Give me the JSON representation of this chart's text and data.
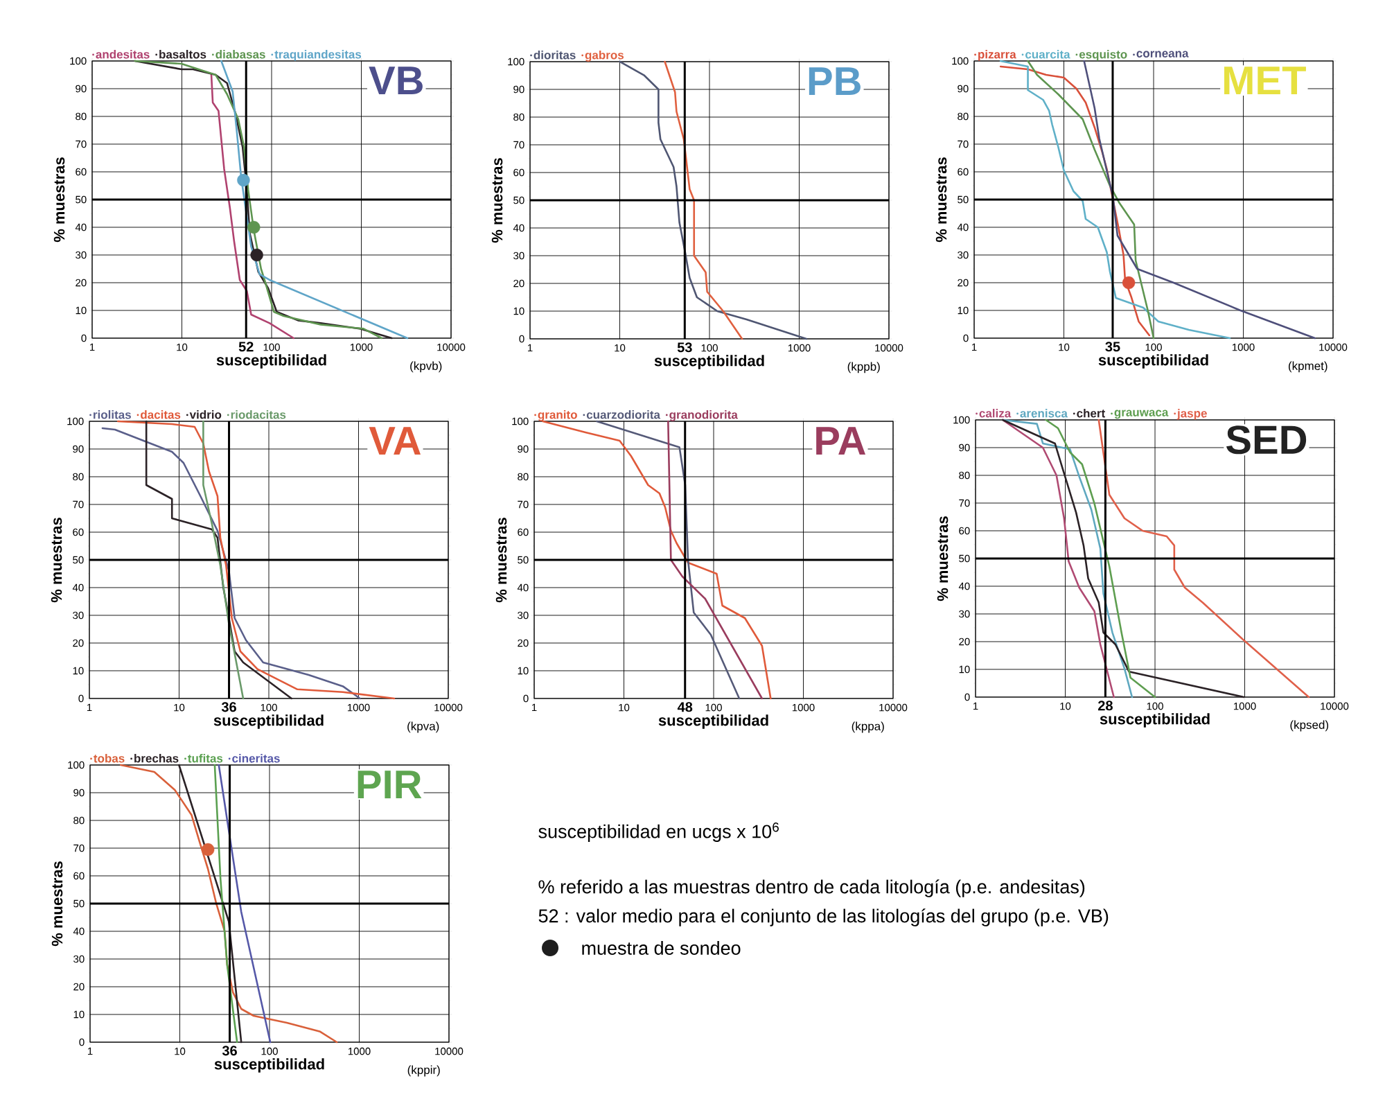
{
  "chart_data": [
    {
      "type": "line",
      "title": "VB",
      "xlabel": "susceptibilidad",
      "ylabel": "% muestras",
      "log": "x",
      "xlim": [
        1,
        10000
      ],
      "xticks": [
        1,
        10,
        100,
        1000,
        10000
      ],
      "ylim": [
        0,
        100
      ],
      "yticks": [
        0,
        10,
        20,
        30,
        40,
        50,
        60,
        70,
        80,
        90,
        100
      ],
      "grid": true,
      "legend": "top",
      "annotations": [
        "(kpvb)"
      ],
      "ref_lines": [
        {
          "axis": "x",
          "value": 52,
          "label": "52"
        },
        {
          "axis": "y",
          "value": 50
        }
      ],
      "series": [
        {
          "name": "andesitas",
          "color": "#b0426f",
          "x": [
            21.3,
            22.1,
            25.6,
            29.6,
            34.3,
            38.2,
            44.2,
            53,
            59.2,
            95,
            176
          ],
          "values": [
            95,
            85,
            82,
            61,
            47,
            35,
            21,
            17,
            8.5,
            5.4,
            0
          ]
        },
        {
          "name": "basaltos",
          "color": "#2b2226",
          "x": [
            3,
            9.9,
            13.3,
            23.8,
            31.9,
            39.6,
            47.5,
            53,
            57,
            71,
            91.6,
            114,
            197,
            352,
            977,
            2182
          ],
          "values": [
            100,
            97,
            97,
            95,
            92,
            81,
            69,
            53.5,
            38,
            24,
            18,
            9.5,
            6.4,
            5.4,
            3.4,
            0
          ]
        },
        {
          "name": "diabasas",
          "color": "#5e9550",
          "x": [
            3,
            9.9,
            23.8,
            31.9,
            42.5,
            49.3,
            54.8,
            63.3,
            76.3,
            85.3,
            106,
            136,
            352,
            1056,
            1685
          ],
          "values": [
            100,
            99,
            95,
            88,
            79,
            69,
            53.5,
            39,
            25,
            20,
            9.5,
            8,
            4.9,
            3.4,
            0
          ]
        },
        {
          "name": "traquiandesitas",
          "color": "#5fa5c8",
          "x": [
            27.5,
            36.8,
            41.1,
            45.8,
            59.2,
            73.6,
            95,
            3258
          ],
          "values": [
            100,
            89,
            74,
            58,
            33,
            23,
            21,
            0
          ]
        },
        {
          "type": "scatter",
          "colors": [
            "#5fa5c8",
            "#5e9550",
            "#2b2226"
          ],
          "x": [
            48.6,
            63.3,
            68.4
          ],
          "values": [
            57,
            40,
            30
          ]
        }
      ]
    },
    {
      "type": "line",
      "title": "PB",
      "xlabel": "susceptibilidad",
      "ylabel": "% muestras",
      "log": "x",
      "xlim": [
        1,
        10000
      ],
      "xticks": [
        1,
        10,
        100,
        1000,
        10000
      ],
      "ylim": [
        0,
        100
      ],
      "yticks": [
        0,
        10,
        20,
        30,
        40,
        50,
        60,
        70,
        80,
        90,
        100
      ],
      "grid": true,
      "legend": "top",
      "annotations": [
        "(kppb)"
      ],
      "ref_lines": [
        {
          "axis": "x",
          "value": 53,
          "label": "53"
        },
        {
          "axis": "y",
          "value": 50
        }
      ],
      "series": [
        {
          "name": "dioritas",
          "color": "#4f5672",
          "x": [
            10,
            18.8,
            27,
            27,
            28.4,
            39.8,
            42.9,
            46.2,
            53.7,
            60.1,
            72.4,
            122,
            259,
            1202
          ],
          "values": [
            100,
            95,
            90,
            78,
            72,
            62,
            55,
            42,
            31,
            22,
            15,
            10,
            7,
            0
          ]
        },
        {
          "name": "gabros",
          "color": "#e0603f",
          "x": [
            31.8,
            41.3,
            42.9,
            51.7,
            60.1,
            67.3,
            67.3,
            90.7,
            94.2,
            142,
            231
          ],
          "values": [
            100,
            89,
            82,
            72,
            54,
            50,
            30,
            24,
            17,
            10,
            0
          ]
        }
      ]
    },
    {
      "type": "line",
      "title": "MET",
      "xlabel": "susceptibilidad",
      "ylabel": "% muestras",
      "log": "x",
      "xlim": [
        1,
        10000
      ],
      "xticks": [
        1,
        10,
        100,
        1000,
        10000
      ],
      "ylim": [
        0,
        100
      ],
      "yticks": [
        0,
        10,
        20,
        30,
        40,
        50,
        60,
        70,
        80,
        90,
        100
      ],
      "grid": true,
      "legend": "top",
      "annotations": [
        "(kpmet)"
      ],
      "ref_lines": [
        {
          "axis": "x",
          "value": 35,
          "label": "35"
        },
        {
          "axis": "y",
          "value": 50
        }
      ],
      "series": [
        {
          "name": "pizarra",
          "color": "#d9503a",
          "x": [
            1.97,
            3.97,
            6.34,
            10,
            13.8,
            17.5,
            22,
            26.8,
            30.1,
            35.2,
            41.1,
            46.2,
            48.1,
            56.2,
            68.2,
            89.7
          ],
          "values": [
            98,
            97,
            95,
            94,
            90,
            85,
            76,
            67,
            61,
            50,
            39,
            30,
            21,
            15,
            6,
            1
          ]
        },
        {
          "name": "cuarcita",
          "color": "#5fb0c8",
          "x": [
            1.97,
            3.97,
            3.97,
            5.86,
            6.85,
            7.41,
            8.65,
            10,
            12.8,
            16.2,
            17.5,
            23.9,
            30.1,
            32.6,
            38,
            76.7,
            113,
            247,
            707
          ],
          "values": [
            100,
            98,
            89.5,
            86,
            82,
            77,
            69,
            60.5,
            53,
            49.5,
            43,
            40,
            31,
            24,
            14.5,
            11,
            6,
            3,
            0
          ]
        },
        {
          "name": "esquisto",
          "color": "#5e9550",
          "x": [
            3.97,
            5.02,
            8.65,
            16.2,
            22,
            32.6,
            41.1,
            60.7,
            63.1,
            86.2,
            100
          ],
          "values": [
            100,
            95,
            88,
            79,
            68,
            55,
            49,
            41,
            28,
            10,
            0
          ]
        },
        {
          "name": "corneana",
          "color": "#4e4f7a",
          "x": [
            16.8,
            22,
            24.8,
            35.2,
            39.6,
            65.6,
            167,
            929,
            6266
          ],
          "values": [
            100,
            83,
            72,
            51,
            37,
            25,
            20,
            10,
            0
          ]
        },
        {
          "type": "scatter",
          "colors": [
            "#d9503a"
          ],
          "x": [
            52.8
          ],
          "values": [
            20
          ]
        }
      ]
    },
    {
      "type": "line",
      "title": "VA",
      "xlabel": "susceptibilidad",
      "ylabel": "% muestras",
      "log": "x",
      "xlim": [
        1,
        10000
      ],
      "xticks": [
        1,
        10,
        100,
        1000,
        10000
      ],
      "ylim": [
        0,
        100
      ],
      "yticks": [
        0,
        10,
        20,
        30,
        40,
        50,
        60,
        70,
        80,
        90,
        100
      ],
      "grid": true,
      "legend": "top",
      "annotations": [
        "(kpva)"
      ],
      "ref_lines": [
        {
          "axis": "x",
          "value": 36,
          "label": "36"
        },
        {
          "axis": "y",
          "value": 50
        }
      ],
      "series": [
        {
          "name": "riolitas",
          "color": "#5a5f8a",
          "x": [
            1.4,
            1.93,
            4.01,
            8.33,
            11.2,
            17.3,
            26.8,
            35.9,
            41.6,
            55.7,
            86.4,
            278,
            669,
            1037
          ],
          "values": [
            97.5,
            97,
            93,
            89,
            85,
            73,
            60.5,
            46,
            29,
            21,
            13,
            8.5,
            4.4,
            0
          ]
        },
        {
          "name": "dacitas",
          "color": "#e05a3a",
          "x": [
            2.08,
            8.33,
            14.9,
            18.6,
            21.5,
            26.8,
            28.8,
            33.4,
            38.7,
            48.2,
            74.7,
            208,
            669,
            2496
          ],
          "values": [
            100,
            99,
            98,
            92,
            82,
            73,
            58,
            48,
            29,
            17,
            10.6,
            3.3,
            2.3,
            0
          ]
        },
        {
          "name": "vidrio",
          "color": "#2b2226",
          "x": [
            4.31,
            4.31,
            8.33,
            8.33,
            23.2,
            26.8,
            31.1,
            35.9,
            41.6,
            51.8,
            179
          ],
          "values": [
            100,
            77,
            72,
            65,
            61,
            58,
            40,
            29,
            17,
            13,
            0
          ]
        },
        {
          "name": "riodacitas",
          "color": "#6a9a6a",
          "x": [
            18.6,
            18.6,
            23.2,
            28.8,
            35.9,
            51.8
          ],
          "values": [
            100,
            77,
            63,
            48,
            27,
            0
          ]
        }
      ]
    },
    {
      "type": "line",
      "title": "PA",
      "xlabel": "susceptibilidad",
      "ylabel": "% muestras",
      "log": "x",
      "xlim": [
        1,
        10000
      ],
      "xticks": [
        1,
        10,
        100,
        1000,
        10000
      ],
      "ylim": [
        0,
        100
      ],
      "yticks": [
        0,
        10,
        20,
        30,
        40,
        50,
        60,
        70,
        80,
        90,
        100
      ],
      "grid": true,
      "legend": "top",
      "annotations": [
        "(kppa)"
      ],
      "ref_lines": [
        {
          "axis": "x",
          "value": 48,
          "label": "48"
        },
        {
          "axis": "y",
          "value": 50
        }
      ],
      "series": [
        {
          "name": "granito",
          "color": "#e05a3a",
          "x": [
            1.25,
            3.73,
            8.96,
            12,
            18.6,
            24.9,
            28.8,
            33.4,
            38.7,
            51.8,
            108,
            125,
            223,
            346,
            432
          ],
          "values": [
            100,
            96,
            93,
            87.5,
            77,
            74,
            69,
            60.5,
            56,
            49,
            45,
            33.5,
            29,
            19,
            0
          ]
        },
        {
          "name": "cuarzodiorita",
          "color": "#555a78",
          "x": [
            4.99,
            41.6,
            48.2,
            51.8,
            60,
            93,
            193
          ],
          "values": [
            100,
            90.6,
            77,
            50,
            31,
            23,
            0
          ]
        },
        {
          "name": "granodiorita",
          "color": "#9a3d5e",
          "x": [
            31.1,
            33.4,
            44.8,
            80.4,
            346
          ],
          "values": [
            100,
            50,
            44,
            36,
            0
          ]
        }
      ]
    },
    {
      "type": "line",
      "title": "SED",
      "xlabel": "susceptibilidad",
      "ylabel": "% muestras",
      "log": "x",
      "xlim": [
        1,
        10000
      ],
      "xticks": [
        1,
        10,
        100,
        1000,
        10000
      ],
      "ylim": [
        0,
        100
      ],
      "yticks": [
        0,
        10,
        20,
        30,
        40,
        50,
        60,
        70,
        80,
        90,
        100
      ],
      "grid": true,
      "legend": "top",
      "annotations": [
        "(kpsed)"
      ],
      "ref_lines": [
        {
          "axis": "x",
          "value": 28,
          "label": "28"
        },
        {
          "axis": "y",
          "value": 50
        }
      ],
      "series": [
        {
          "name": "caliza",
          "color": "#b04a72",
          "x": [
            2.01,
            5.63,
            7.98,
            9.7,
            10.9,
            14.3,
            21.1,
            24.6,
            34.8
          ],
          "values": [
            100,
            90,
            80,
            64.5,
            49,
            39.5,
            31,
            19,
            0
          ]
        },
        {
          "name": "arenisca",
          "color": "#5fa8c0",
          "x": [
            2.01,
            4.83,
            5.63,
            11.3,
            14.3,
            19.5,
            24.6,
            26.6,
            33.5,
            45.7,
            55.5
          ],
          "values": [
            100,
            98.6,
            91.5,
            89.4,
            79.6,
            67.7,
            53.6,
            37.4,
            23.3,
            10.3,
            0
          ]
        },
        {
          "name": "chert",
          "color": "#2b2226",
          "x": [
            2.01,
            7.68,
            9.7,
            13.2,
            16,
            18,
            23.6,
            26.6,
            36.2,
            51.3,
            977
          ],
          "values": [
            100,
            91.5,
            80.7,
            66.6,
            54.7,
            42.8,
            34.1,
            23.3,
            19,
            9.2,
            0
          ]
        },
        {
          "name": "grauwaca",
          "color": "#5e9e50",
          "x": [
            6.09,
            8.3,
            11.3,
            15.4,
            21.1,
            31,
            42.3,
            53.3,
            100
          ],
          "values": [
            100,
            97,
            88.3,
            84,
            69.9,
            47.1,
            23.3,
            7,
            0
          ]
        },
        {
          "name": "jaspe",
          "color": "#e0604a",
          "x": [
            23.6,
            31,
            45.7,
            72.8,
            135,
            164,
            164,
            215,
            343,
            940,
            5172
          ],
          "values": [
            100,
            73,
            64.5,
            60,
            58,
            54.7,
            46,
            39.5,
            34,
            21,
            0
          ]
        }
      ]
    },
    {
      "type": "line",
      "title": "PIR",
      "xlabel": "susceptibilidad",
      "ylabel": "% muestras",
      "log": "x",
      "xlim": [
        1,
        10000
      ],
      "xticks": [
        1,
        10,
        100,
        1000,
        10000
      ],
      "ylim": [
        0,
        100
      ],
      "yticks": [
        0,
        10,
        20,
        30,
        40,
        50,
        60,
        70,
        80,
        90,
        100
      ],
      "grid": true,
      "legend": "top",
      "annotations": [
        "(kppir)"
      ],
      "ref_lines": [
        {
          "axis": "x",
          "value": 36,
          "label": "36"
        },
        {
          "axis": "y",
          "value": 50
        }
      ],
      "series": [
        {
          "name": "tobas",
          "color": "#d9603a",
          "x": [
            2.2,
            5.2,
            8.8,
            13.5,
            16.7,
            20.6,
            25.5,
            31.6,
            33.7,
            39.1,
            48.4,
            66.7,
            156,
            367,
            562
          ],
          "values": [
            100,
            97.5,
            91,
            82,
            72,
            62.5,
            50,
            40,
            28,
            18,
            12,
            9.5,
            7,
            3.8,
            0
          ]
        },
        {
          "name": "brechas",
          "color": "#2b2226",
          "x": [
            9.8,
            35.2,
            48.4
          ],
          "values": [
            100,
            43.5,
            0
          ]
        },
        {
          "name": "tufitas",
          "color": "#5aa050",
          "x": [
            24.5,
            28.4,
            33.7,
            43.5
          ],
          "values": [
            100,
            59,
            28,
            0
          ]
        },
        {
          "name": "cineritas",
          "color": "#5558a8",
          "x": [
            27.2,
            48.4,
            102
          ],
          "values": [
            100,
            47,
            0
          ]
        },
        {
          "type": "scatter",
          "colors": [
            "#d9603a"
          ],
          "x": [
            20.6
          ],
          "values": [
            69.5
          ]
        }
      ]
    },
    {
      "type": "other",
      "annotations": [
        "susceptibilidad en ucgs x 10$^{6}$",
        "% referido a las muestras dentro de cada litología (p.e. andesitas)",
        "52 : valor medio para el conjunto de las litologías del grupo (p.e. VB)"
      ],
      "series": [
        {
          "name": "muestra de sondeo",
          "color": "#1e1e1e"
        }
      ]
    }
  ]
}
